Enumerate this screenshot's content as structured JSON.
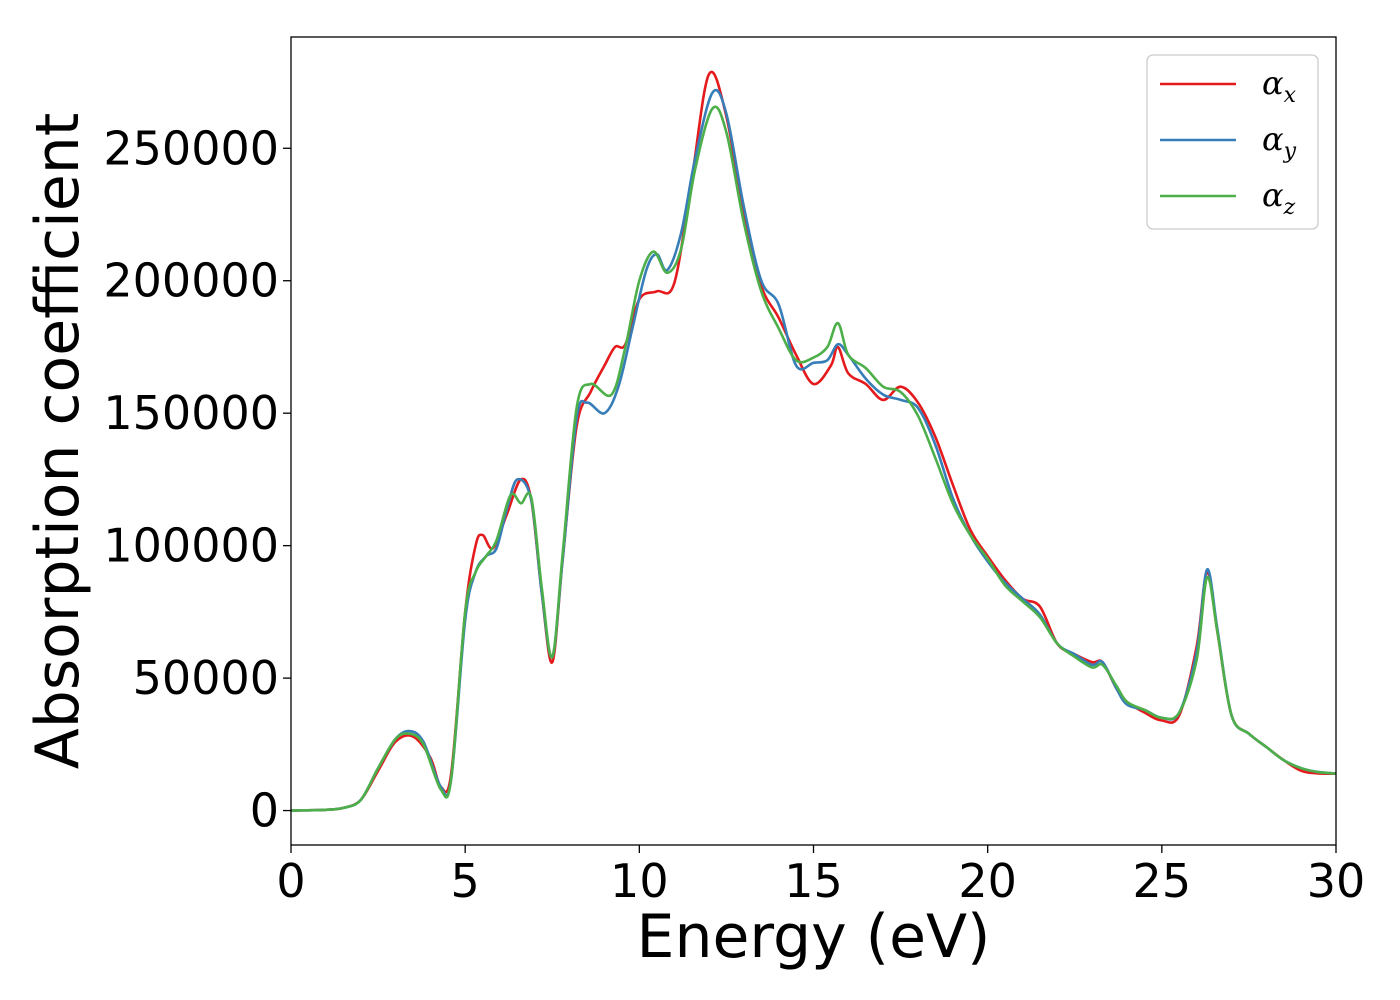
{
  "chart_data": {
    "type": "line",
    "xlabel": "Energy (eV)",
    "ylabel": "Absorption coefficient",
    "xlim": [
      0,
      30
    ],
    "ylim": [
      -13000,
      292000
    ],
    "xticks": [
      0,
      5,
      10,
      15,
      20,
      25,
      30
    ],
    "yticks": [
      0,
      50000,
      100000,
      150000,
      200000,
      250000
    ],
    "grid": false,
    "legend_position": "top-right",
    "series": [
      {
        "name": "α_x",
        "label_main": "α",
        "label_sub": "x",
        "color": "#e41a1c",
        "points": [
          [
            0,
            0
          ],
          [
            1,
            300
          ],
          [
            1.5,
            1000
          ],
          [
            2,
            4000
          ],
          [
            2.5,
            15000
          ],
          [
            3,
            26000
          ],
          [
            3.5,
            28000
          ],
          [
            4,
            20000
          ],
          [
            4.3,
            9000
          ],
          [
            4.6,
            14000
          ],
          [
            5,
            75000
          ],
          [
            5.3,
            100000
          ],
          [
            5.5,
            104000
          ],
          [
            5.8,
            99000
          ],
          [
            6.2,
            112000
          ],
          [
            6.6,
            125000
          ],
          [
            6.9,
            117000
          ],
          [
            7.2,
            82000
          ],
          [
            7.5,
            56000
          ],
          [
            7.8,
            95000
          ],
          [
            8.2,
            145000
          ],
          [
            8.6,
            158000
          ],
          [
            9,
            168000
          ],
          [
            9.3,
            175000
          ],
          [
            9.6,
            176000
          ],
          [
            10,
            193000
          ],
          [
            10.5,
            196000
          ],
          [
            11,
            199000
          ],
          [
            11.5,
            238000
          ],
          [
            12,
            278000
          ],
          [
            12.5,
            262000
          ],
          [
            13,
            225000
          ],
          [
            13.5,
            198000
          ],
          [
            14,
            186000
          ],
          [
            14.5,
            172000
          ],
          [
            15,
            161000
          ],
          [
            15.5,
            168000
          ],
          [
            15.7,
            175000
          ],
          [
            16,
            165000
          ],
          [
            16.5,
            161000
          ],
          [
            17,
            155000
          ],
          [
            17.5,
            160000
          ],
          [
            18,
            154000
          ],
          [
            18.5,
            141000
          ],
          [
            19,
            123000
          ],
          [
            19.5,
            106000
          ],
          [
            20,
            96000
          ],
          [
            20.5,
            87000
          ],
          [
            21,
            80000
          ],
          [
            21.5,
            77000
          ],
          [
            22,
            63000
          ],
          [
            22.5,
            59000
          ],
          [
            23,
            56000
          ],
          [
            23.3,
            56000
          ],
          [
            23.7,
            46000
          ],
          [
            24,
            41000
          ],
          [
            24.5,
            37000
          ],
          [
            25,
            34000
          ],
          [
            25.5,
            36000
          ],
          [
            26,
            62000
          ],
          [
            26.3,
            90000
          ],
          [
            26.6,
            67000
          ],
          [
            27,
            36000
          ],
          [
            27.5,
            29000
          ],
          [
            28,
            24000
          ],
          [
            28.5,
            19000
          ],
          [
            29,
            15000
          ],
          [
            29.5,
            14000
          ],
          [
            30,
            14000
          ]
        ]
      },
      {
        "name": "α_y",
        "label_main": "α",
        "label_sub": "y",
        "color": "#377eb8",
        "points": [
          [
            0,
            0
          ],
          [
            1,
            300
          ],
          [
            1.5,
            1000
          ],
          [
            2,
            4000
          ],
          [
            2.5,
            16000
          ],
          [
            3,
            27000
          ],
          [
            3.4,
            30000
          ],
          [
            3.8,
            26000
          ],
          [
            4.3,
            9000
          ],
          [
            4.6,
            12000
          ],
          [
            5,
            72000
          ],
          [
            5.3,
            90000
          ],
          [
            5.6,
            96000
          ],
          [
            5.9,
            99000
          ],
          [
            6.2,
            114000
          ],
          [
            6.5,
            125000
          ],
          [
            6.9,
            117000
          ],
          [
            7.2,
            82000
          ],
          [
            7.5,
            58000
          ],
          [
            7.8,
            95000
          ],
          [
            8.2,
            148000
          ],
          [
            8.5,
            154000
          ],
          [
            9,
            150000
          ],
          [
            9.4,
            160000
          ],
          [
            9.8,
            182000
          ],
          [
            10.2,
            204000
          ],
          [
            10.5,
            210000
          ],
          [
            10.8,
            204000
          ],
          [
            11.2,
            218000
          ],
          [
            11.6,
            246000
          ],
          [
            12.1,
            271000
          ],
          [
            12.5,
            263000
          ],
          [
            13,
            228000
          ],
          [
            13.5,
            200000
          ],
          [
            14,
            191000
          ],
          [
            14.5,
            168000
          ],
          [
            15,
            169000
          ],
          [
            15.4,
            170000
          ],
          [
            15.7,
            176000
          ],
          [
            16,
            172000
          ],
          [
            16.5,
            163000
          ],
          [
            17,
            157000
          ],
          [
            17.5,
            155000
          ],
          [
            18,
            152000
          ],
          [
            18.5,
            138000
          ],
          [
            19,
            118000
          ],
          [
            19.5,
            104000
          ],
          [
            20,
            94000
          ],
          [
            20.5,
            86000
          ],
          [
            21,
            80000
          ],
          [
            21.5,
            74000
          ],
          [
            22,
            63000
          ],
          [
            22.5,
            59000
          ],
          [
            23,
            55000
          ],
          [
            23.3,
            56000
          ],
          [
            23.7,
            46000
          ],
          [
            24,
            40000
          ],
          [
            24.5,
            38000
          ],
          [
            25,
            35000
          ],
          [
            25.5,
            37000
          ],
          [
            26,
            60000
          ],
          [
            26.3,
            91000
          ],
          [
            26.6,
            68000
          ],
          [
            27,
            36000
          ],
          [
            27.5,
            29000
          ],
          [
            28,
            24000
          ],
          [
            28.5,
            19000
          ],
          [
            29,
            16000
          ],
          [
            29.5,
            14500
          ],
          [
            30,
            14000
          ]
        ]
      },
      {
        "name": "α_z",
        "label_main": "α",
        "label_sub": "z",
        "color": "#4daf4a",
        "points": [
          [
            0,
            0
          ],
          [
            1,
            300
          ],
          [
            1.5,
            1000
          ],
          [
            2,
            4000
          ],
          [
            2.5,
            16000
          ],
          [
            3,
            27000
          ],
          [
            3.4,
            29000
          ],
          [
            3.8,
            25000
          ],
          [
            4.3,
            8000
          ],
          [
            4.6,
            12000
          ],
          [
            5,
            75000
          ],
          [
            5.3,
            90000
          ],
          [
            5.6,
            96000
          ],
          [
            5.9,
            102000
          ],
          [
            6.3,
            119000
          ],
          [
            6.6,
            116000
          ],
          [
            6.9,
            118000
          ],
          [
            7.2,
            84000
          ],
          [
            7.5,
            58000
          ],
          [
            7.8,
            97000
          ],
          [
            8.2,
            152000
          ],
          [
            8.6,
            161000
          ],
          [
            9.2,
            157000
          ],
          [
            9.6,
            175000
          ],
          [
            10,
            200000
          ],
          [
            10.4,
            211000
          ],
          [
            10.8,
            203000
          ],
          [
            11.2,
            212000
          ],
          [
            11.6,
            242000
          ],
          [
            12.1,
            265000
          ],
          [
            12.5,
            256000
          ],
          [
            13,
            222000
          ],
          [
            13.5,
            196000
          ],
          [
            14,
            182000
          ],
          [
            14.5,
            170000
          ],
          [
            15,
            171000
          ],
          [
            15.4,
            175000
          ],
          [
            15.7,
            184000
          ],
          [
            16,
            172000
          ],
          [
            16.5,
            167000
          ],
          [
            17,
            160000
          ],
          [
            17.5,
            158000
          ],
          [
            18,
            149000
          ],
          [
            18.5,
            133000
          ],
          [
            19,
            116000
          ],
          [
            19.5,
            104000
          ],
          [
            20,
            95000
          ],
          [
            20.5,
            85000
          ],
          [
            21,
            79000
          ],
          [
            21.5,
            73000
          ],
          [
            22,
            63000
          ],
          [
            22.5,
            58000
          ],
          [
            23,
            54000
          ],
          [
            23.3,
            55000
          ],
          [
            23.7,
            47000
          ],
          [
            24,
            41000
          ],
          [
            24.5,
            38000
          ],
          [
            25,
            35000
          ],
          [
            25.5,
            37000
          ],
          [
            26,
            57000
          ],
          [
            26.3,
            88000
          ],
          [
            26.6,
            67000
          ],
          [
            27,
            36000
          ],
          [
            27.5,
            29000
          ],
          [
            28,
            24000
          ],
          [
            28.5,
            19000
          ],
          [
            29,
            16000
          ],
          [
            29.5,
            14500
          ],
          [
            30,
            14000
          ]
        ]
      }
    ]
  }
}
